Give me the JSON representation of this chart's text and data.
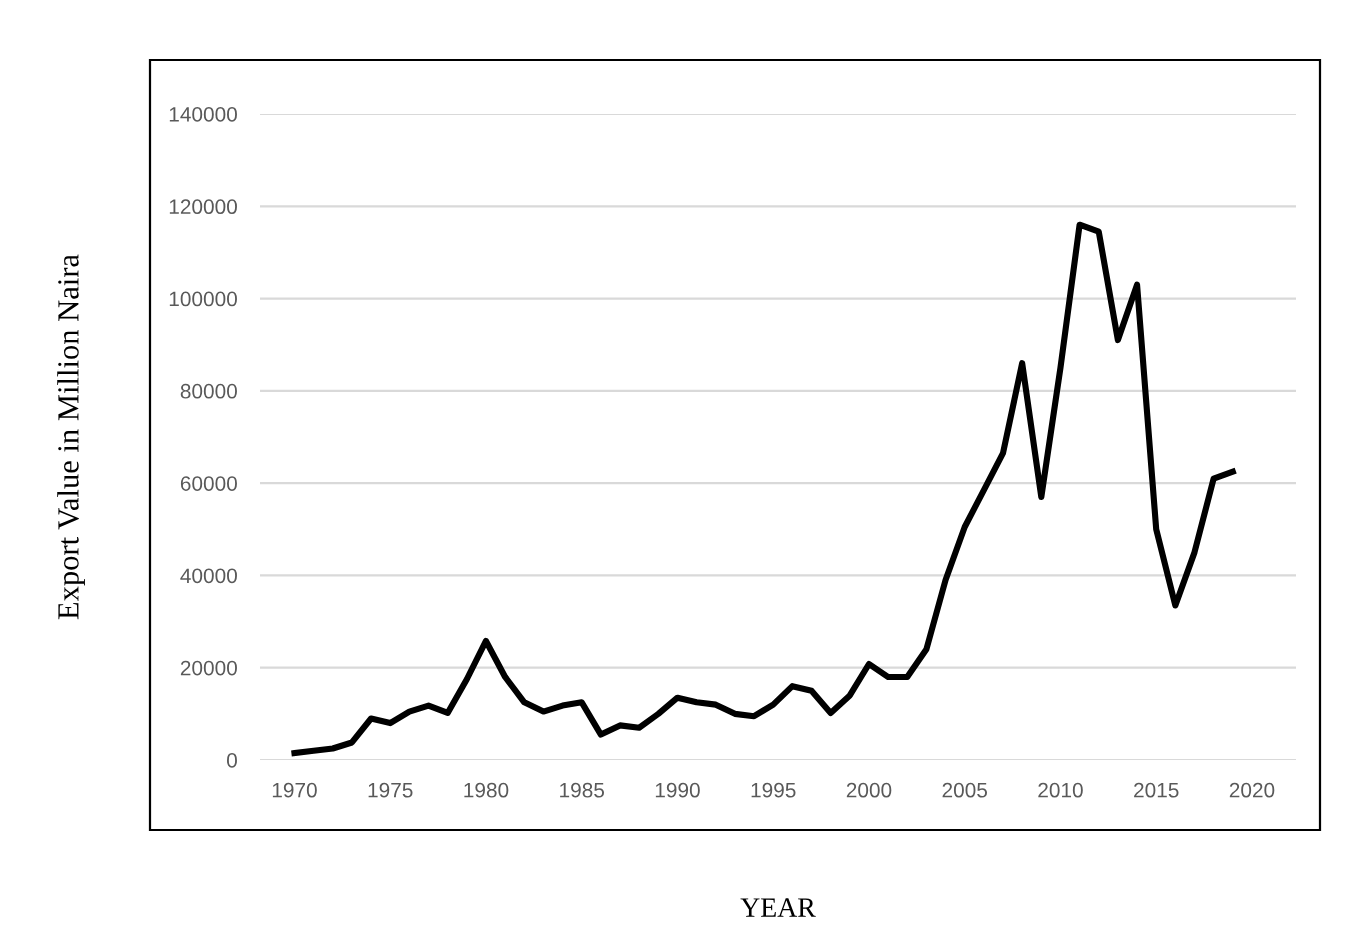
{
  "chart_data": {
    "type": "line",
    "xlabel": "YEAR",
    "ylabel": "Export Value in Million Naira",
    "x": [
      1970,
      1971,
      1972,
      1973,
      1974,
      1975,
      1976,
      1977,
      1978,
      1979,
      1980,
      1981,
      1982,
      1983,
      1984,
      1985,
      1986,
      1987,
      1988,
      1989,
      1990,
      1991,
      1992,
      1993,
      1994,
      1995,
      1996,
      1997,
      1998,
      1999,
      2000,
      2001,
      2002,
      2003,
      2004,
      2005,
      2006,
      2007,
      2008,
      2009,
      2010,
      2011,
      2012,
      2013,
      2014,
      2015,
      2016,
      2017,
      2018,
      2019
    ],
    "series": [
      {
        "color": "#000000",
        "values": [
          1500,
          2000,
          2500,
          3800,
          9000,
          8000,
          10500,
          11800,
          10200,
          17500,
          25800,
          18000,
          12500,
          10500,
          11800,
          12500,
          5500,
          7500,
          7000,
          10000,
          13500,
          12500,
          12000,
          10000,
          9500,
          12000,
          16000,
          15000,
          10200,
          14000,
          20800,
          18000,
          18000,
          24000,
          39000,
          50500,
          58500,
          66500,
          86000,
          57000,
          85000,
          116000,
          114500,
          91000,
          103000,
          50000,
          33500,
          45000,
          61000,
          62500
        ]
      }
    ],
    "xlim": [
      1968.2,
      2022.3
    ],
    "xticks": [
      1970,
      1975,
      1980,
      1985,
      1990,
      1995,
      2000,
      2005,
      2010,
      2015,
      2020
    ],
    "ylim": [
      0,
      140000
    ],
    "yticks": [
      0,
      20000,
      40000,
      60000,
      80000,
      100000,
      120000,
      140000
    ],
    "grid": "y",
    "legend": false,
    "marker": "none",
    "line_style": "solid"
  }
}
